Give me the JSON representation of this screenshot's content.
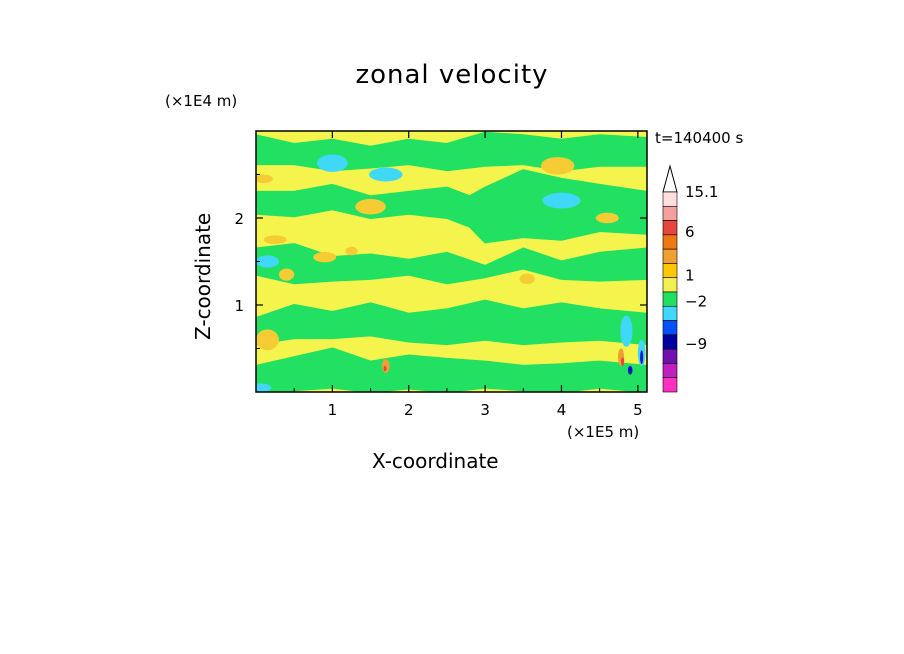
{
  "chart_data": {
    "type": "heatmap",
    "title": "zonal velocity",
    "xlabel": "X-coordinate",
    "ylabel": "Z-coordinate",
    "x_scale_label": "(×1E5 m)",
    "y_scale_label": "(×1E4 m)",
    "time_label": "t=140400 s",
    "xlim": [
      0,
      5.12
    ],
    "ylim": [
      0,
      3.0
    ],
    "x_ticks": [
      "1",
      "2",
      "3",
      "4",
      "5"
    ],
    "y_ticks": [
      "1",
      "2"
    ],
    "colorbar": {
      "labels": [
        "15.1",
        "6",
        "1",
        "−2",
        "−9"
      ],
      "colors_top_to_bottom": [
        "#ffdede",
        "#f4a0a0",
        "#e8453c",
        "#f07814",
        "#f0a030",
        "#ffc800",
        "#f0f050",
        "#20e060",
        "#40d8ff",
        "#0050ff",
        "#0000a0",
        "#7010b0",
        "#c020c0",
        "#ff30c0"
      ]
    },
    "field": {
      "background_color": "#f4f44c",
      "levels": [
        {
          "name": "0 to 1",
          "color": "#f4f44c"
        },
        {
          "name": "-2 to 0",
          "color": "#22e062"
        },
        {
          "name": "-4 to -2",
          "color": "#40d8f8"
        },
        {
          "name": "1 to 3",
          "color": "#f6cc34"
        },
        {
          "name": "3 to 6",
          "color": "#f0a030"
        },
        {
          "name": "> 6",
          "color": "#e8453c"
        },
        {
          "name": "< -6",
          "color": "#0018c8"
        }
      ],
      "green_bands": [
        {
          "xs": [
            0.0,
            0.5,
            1.0,
            1.5,
            2.0,
            2.5,
            3.0,
            3.5,
            4.0,
            4.5,
            5.12
          ],
          "top": [
            2.95,
            2.85,
            2.9,
            2.82,
            2.9,
            2.85,
            2.98,
            2.95,
            2.9,
            2.95,
            2.92
          ],
          "bottom": [
            2.62,
            2.62,
            2.55,
            2.58,
            2.62,
            2.55,
            2.6,
            2.62,
            2.55,
            2.6,
            2.6
          ]
        },
        {
          "xs": [
            0.0,
            0.5,
            1.0,
            1.5,
            2.0,
            2.5,
            2.8,
            3.0,
            3.5,
            4.0,
            4.5,
            5.12
          ],
          "top": [
            2.3,
            2.3,
            2.38,
            2.25,
            2.3,
            2.35,
            2.25,
            2.35,
            2.55,
            2.45,
            2.38,
            2.3
          ],
          "bottom": [
            2.05,
            2.02,
            2.1,
            2.0,
            2.05,
            2.0,
            1.9,
            1.72,
            1.78,
            1.75,
            1.85,
            1.82
          ]
        },
        {
          "xs": [
            0.0,
            0.5,
            1.0,
            1.5,
            2.0,
            2.5,
            3.0,
            3.5,
            4.0,
            4.5,
            5.12
          ],
          "top": [
            1.65,
            1.7,
            1.55,
            1.58,
            1.52,
            1.6,
            1.45,
            1.65,
            1.5,
            1.6,
            1.65
          ],
          "bottom": [
            1.35,
            1.25,
            1.28,
            1.3,
            1.35,
            1.25,
            1.32,
            1.42,
            1.3,
            1.28,
            1.3
          ]
        },
        {
          "xs": [
            0.0,
            0.5,
            1.0,
            1.5,
            2.0,
            2.5,
            3.0,
            3.5,
            4.0,
            4.5,
            5.12
          ],
          "top": [
            0.85,
            1.0,
            0.92,
            1.02,
            0.9,
            0.95,
            1.05,
            0.95,
            1.02,
            0.95,
            0.9
          ],
          "bottom": [
            0.55,
            0.62,
            0.62,
            0.65,
            0.58,
            0.55,
            0.6,
            0.55,
            0.58,
            0.6,
            0.55
          ]
        },
        {
          "xs": [
            0.0,
            0.5,
            1.0,
            1.5,
            2.0,
            2.5,
            3.0,
            3.5,
            4.0,
            4.5,
            5.12
          ],
          "top": [
            0.3,
            0.4,
            0.5,
            0.35,
            0.42,
            0.38,
            0.35,
            0.3,
            0.32,
            0.35,
            0.3
          ],
          "bottom": [
            0.0,
            0.02,
            0.05,
            0.0,
            0.04,
            0.0,
            0.05,
            0.02,
            0.0,
            0.05,
            0.0
          ]
        }
      ],
      "patches": [
        {
          "color": "#40d8f8",
          "cx": 1.0,
          "cy": 2.63,
          "rx": 0.2,
          "ry": 0.1
        },
        {
          "color": "#40d8f8",
          "cx": 1.7,
          "cy": 2.5,
          "rx": 0.22,
          "ry": 0.08
        },
        {
          "color": "#40d8f8",
          "cx": 4.0,
          "cy": 2.2,
          "rx": 0.25,
          "ry": 0.09
        },
        {
          "color": "#40d8f8",
          "cx": 0.15,
          "cy": 1.5,
          "rx": 0.15,
          "ry": 0.07
        },
        {
          "color": "#40d8f8",
          "cx": 0.05,
          "cy": 0.05,
          "rx": 0.15,
          "ry": 0.05
        },
        {
          "color": "#40d8f8",
          "cx": 4.85,
          "cy": 0.7,
          "rx": 0.08,
          "ry": 0.18
        },
        {
          "color": "#f6cc34",
          "cx": 3.95,
          "cy": 2.6,
          "rx": 0.22,
          "ry": 0.1
        },
        {
          "color": "#f6cc34",
          "cx": 1.5,
          "cy": 2.13,
          "rx": 0.2,
          "ry": 0.09
        },
        {
          "color": "#f6cc34",
          "cx": 4.6,
          "cy": 2.0,
          "rx": 0.15,
          "ry": 0.06
        },
        {
          "color": "#f6cc34",
          "cx": 0.4,
          "cy": 1.35,
          "rx": 0.1,
          "ry": 0.07
        },
        {
          "color": "#f6cc34",
          "cx": 3.55,
          "cy": 1.3,
          "rx": 0.1,
          "ry": 0.06
        },
        {
          "color": "#f6cc34",
          "cx": 0.15,
          "cy": 0.6,
          "rx": 0.15,
          "ry": 0.12
        },
        {
          "color": "#f6cc34",
          "cx": 0.9,
          "cy": 1.55,
          "rx": 0.15,
          "ry": 0.06
        },
        {
          "color": "#f6cc34",
          "cx": 0.25,
          "cy": 1.75,
          "rx": 0.15,
          "ry": 0.05
        },
        {
          "color": "#f6cc34",
          "cx": 0.1,
          "cy": 2.45,
          "rx": 0.12,
          "ry": 0.05
        },
        {
          "color": "#f6cc34",
          "cx": 1.25,
          "cy": 1.62,
          "rx": 0.08,
          "ry": 0.05
        },
        {
          "color": "#f0a030",
          "cx": 1.7,
          "cy": 0.3,
          "rx": 0.05,
          "ry": 0.08
        },
        {
          "color": "#e8453c",
          "cx": 1.69,
          "cy": 0.27,
          "rx": 0.02,
          "ry": 0.03
        },
        {
          "color": "#f0a030",
          "cx": 4.78,
          "cy": 0.4,
          "rx": 0.04,
          "ry": 0.1
        },
        {
          "color": "#e8453c",
          "cx": 4.8,
          "cy": 0.35,
          "rx": 0.02,
          "ry": 0.05
        },
        {
          "color": "#0018c8",
          "cx": 4.9,
          "cy": 0.25,
          "rx": 0.03,
          "ry": 0.05
        },
        {
          "color": "#40d8f8",
          "cx": 5.05,
          "cy": 0.45,
          "rx": 0.05,
          "ry": 0.15
        },
        {
          "color": "#0018c8",
          "cx": 5.05,
          "cy": 0.4,
          "rx": 0.02,
          "ry": 0.08
        }
      ]
    }
  }
}
